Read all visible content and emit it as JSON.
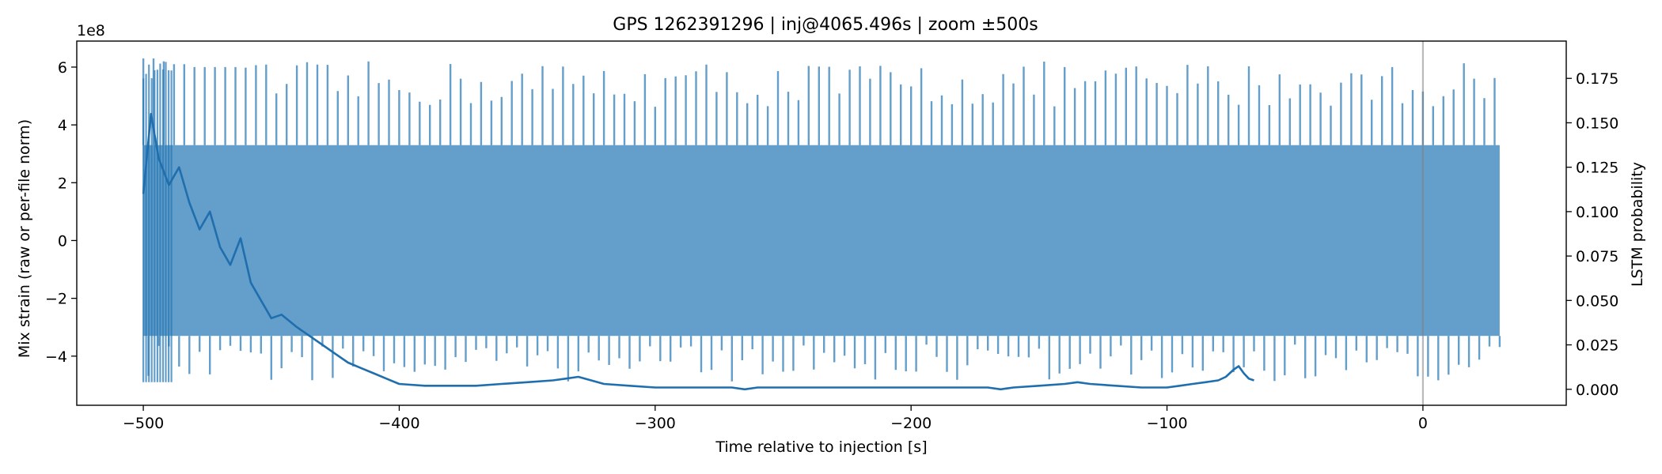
{
  "chart_data": {
    "type": "line",
    "title": "GPS 1262391296 | inj@4065.496s | zoom ±500s",
    "xlabel": "Time relative to injection [s]",
    "ylabel": "Mix strain (raw or per-file norm)",
    "ylabel_right": "LSTM probability",
    "y_offset_label": "1e8",
    "xlim": [
      -526,
      56
    ],
    "ylim": [
      -5.7,
      6.9
    ],
    "ylim_right": [
      -0.009,
      0.196
    ],
    "x_ticks": [
      -500,
      -400,
      -300,
      -200,
      -100,
      0
    ],
    "x_tick_labels": [
      "−500",
      "−400",
      "−300",
      "−200",
      "−100",
      "0"
    ],
    "y_ticks": [
      -4,
      -2,
      0,
      2,
      4,
      6
    ],
    "y_tick_labels": [
      "−4",
      "−2",
      "0",
      "2",
      "4",
      "6"
    ],
    "y_ticks_right": [
      0.0,
      0.025,
      0.05,
      0.075,
      0.1,
      0.125,
      0.15,
      0.175
    ],
    "y_tick_labels_right": [
      "0.000",
      "0.025",
      "0.050",
      "0.075",
      "0.100",
      "0.125",
      "0.150",
      "0.175"
    ],
    "injection_marker_x": 0,
    "grid": false,
    "series": [
      {
        "axis": "left",
        "color": "#2878b5",
        "opacity": 0.72,
        "x_start": -500,
        "x_end": 30,
        "band_upper": 3.3,
        "band_lower": -3.3,
        "spike_period_s": 4.0,
        "spike_upper_range": [
          4.6,
          6.2
        ],
        "spike_lower_range": [
          -3.6,
          -4.9
        ],
        "high_spike_peaks": [
          6.3,
          6.3,
          6.2,
          6.1,
          6.1,
          6.0,
          6.0,
          6.0,
          6.0,
          6.0
        ]
      },
      {
        "axis": "right",
        "color": "#1f6fae",
        "x": [
          -500,
          -497,
          -494,
          -490,
          -486,
          -482,
          -478,
          -474,
          -470,
          -466,
          -462,
          -458,
          -454,
          -450,
          -446,
          -440,
          -435,
          -430,
          -425,
          -420,
          -415,
          -410,
          -405,
          -400,
          -390,
          -380,
          -370,
          -360,
          -350,
          -340,
          -335,
          -330,
          -325,
          -320,
          -310,
          -300,
          -290,
          -280,
          -270,
          -265,
          -260,
          -250,
          -240,
          -230,
          -220,
          -210,
          -200,
          -190,
          -180,
          -170,
          -165,
          -160,
          -150,
          -140,
          -135,
          -130,
          -120,
          -110,
          -100,
          -95,
          -90,
          -85,
          -80,
          -77,
          -74,
          -72,
          -70,
          -68,
          -66
        ],
        "y": [
          0.11,
          0.155,
          0.13,
          0.115,
          0.125,
          0.105,
          0.09,
          0.1,
          0.08,
          0.07,
          0.085,
          0.06,
          0.05,
          0.04,
          0.042,
          0.035,
          0.03,
          0.025,
          0.02,
          0.015,
          0.012,
          0.009,
          0.006,
          0.003,
          0.002,
          0.002,
          0.002,
          0.003,
          0.004,
          0.005,
          0.006,
          0.007,
          0.005,
          0.003,
          0.002,
          0.001,
          0.001,
          0.001,
          0.001,
          0.0,
          0.001,
          0.001,
          0.001,
          0.001,
          0.001,
          0.001,
          0.001,
          0.001,
          0.001,
          0.001,
          0.0,
          0.001,
          0.002,
          0.003,
          0.004,
          0.003,
          0.002,
          0.001,
          0.001,
          0.002,
          0.003,
          0.004,
          0.005,
          0.007,
          0.011,
          0.013,
          0.009,
          0.006,
          0.005
        ]
      }
    ]
  }
}
